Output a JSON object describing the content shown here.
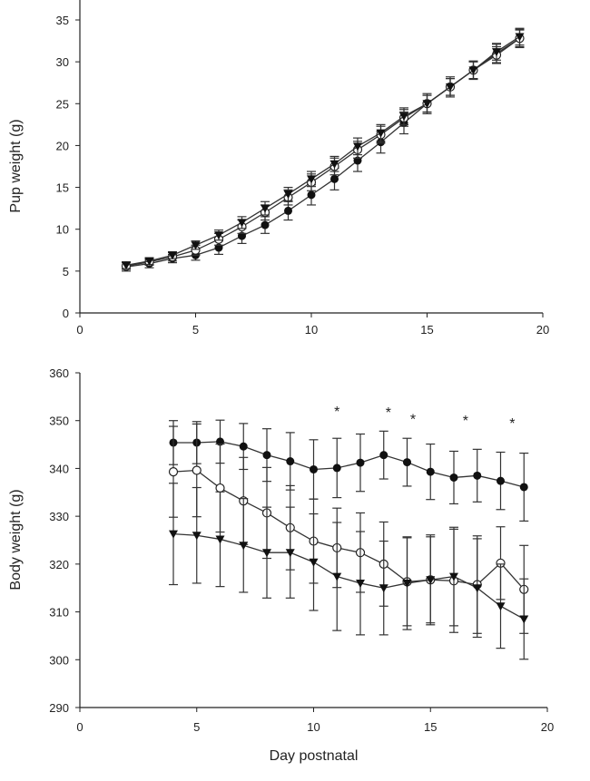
{
  "chart_data": [
    {
      "type": "line",
      "ylabel": "Pup weight (g)",
      "xlabel": "",
      "xlim": [
        0,
        20
      ],
      "ylim": [
        0,
        35
      ],
      "xticks": [
        0,
        5,
        10,
        15,
        20
      ],
      "yticks": [
        0,
        5,
        10,
        15,
        20,
        25,
        30,
        35
      ],
      "grid": false,
      "x": [
        2,
        3,
        4,
        5,
        6,
        7,
        8,
        9,
        10,
        11,
        12,
        13,
        14,
        15,
        16,
        17,
        18,
        19
      ],
      "series": [
        {
          "marker": "filled-circle",
          "values": [
            5.5,
            5.9,
            6.5,
            6.9,
            7.8,
            9.2,
            10.5,
            12.2,
            14.1,
            16,
            18.2,
            20.4,
            22.7,
            25,
            27,
            29,
            31,
            32.8
          ],
          "error": [
            0.5,
            0.5,
            0.5,
            0.6,
            0.8,
            0.9,
            1,
            1.1,
            1.2,
            1.3,
            1.3,
            1.3,
            1.3,
            1.2,
            1.2,
            1.1,
            1.1,
            1.1
          ]
        },
        {
          "marker": "open-circle",
          "values": [
            5.6,
            6.1,
            6.7,
            7.5,
            8.8,
            10.3,
            12,
            13.8,
            15.6,
            17.5,
            19.5,
            21.3,
            23.3,
            25,
            27,
            29,
            30.8,
            32.8
          ],
          "error": [
            0.4,
            0.4,
            0.5,
            0.6,
            0.7,
            0.8,
            0.9,
            0.9,
            1,
            1,
            1,
            1,
            1,
            1,
            1,
            1,
            1,
            1
          ]
        },
        {
          "marker": "filled-triangle-down",
          "values": [
            5.7,
            6.2,
            6.9,
            8.1,
            9.3,
            10.8,
            12.5,
            14.2,
            16,
            17.8,
            19.9,
            21.5,
            23.5,
            25,
            27,
            29,
            31.2,
            33
          ],
          "error": [
            0.4,
            0.4,
            0.4,
            0.5,
            0.6,
            0.7,
            0.8,
            0.8,
            0.9,
            0.9,
            1,
            1,
            1,
            1,
            1,
            1,
            1,
            1
          ]
        }
      ]
    },
    {
      "type": "line",
      "ylabel": "Body weight (g)",
      "xlabel": "Day postnatal",
      "xlim": [
        0,
        20
      ],
      "ylim": [
        290,
        360
      ],
      "xticks": [
        0,
        5,
        10,
        15,
        20
      ],
      "yticks": [
        290,
        300,
        310,
        320,
        330,
        340,
        350,
        360
      ],
      "grid": false,
      "x": [
        4,
        5,
        6,
        7,
        8,
        9,
        10,
        11,
        12,
        13,
        14,
        15,
        16,
        17,
        18,
        19
      ],
      "series": [
        {
          "marker": "filled-circle",
          "values": [
            345.4,
            345.4,
            345.6,
            344.6,
            342.8,
            341.5,
            339.8,
            340.1,
            341.2,
            342.8,
            341.3,
            339.3,
            338.1,
            338.5,
            337.4,
            336.1
          ],
          "error": [
            4.6,
            4.4,
            4.5,
            4.8,
            5.5,
            6,
            6.2,
            6.2,
            6,
            5,
            5,
            5.8,
            5.5,
            5.5,
            6,
            7.1
          ]
        },
        {
          "marker": "open-circle",
          "values": [
            339.3,
            339.6,
            335.9,
            333.2,
            330.7,
            327.6,
            324.8,
            323.4,
            322.4,
            320,
            316.3,
            316.7,
            316.5,
            315.7,
            320.2,
            314.7
          ],
          "error": [
            9.5,
            9.7,
            9.2,
            9.1,
            9.5,
            8.8,
            8.8,
            8.3,
            8.3,
            8.8,
            9.2,
            9,
            10.8,
            10.2,
            7.6,
            9.2
          ]
        },
        {
          "marker": "filled-triangle-down",
          "values": [
            326.3,
            326,
            325.2,
            323.9,
            322.4,
            322.4,
            320.4,
            317.4,
            316,
            315,
            316,
            316.7,
            317.4,
            315,
            311.2,
            308.5
          ],
          "error": [
            10.6,
            10,
            9.9,
            9.8,
            9.5,
            9.5,
            10.1,
            11.3,
            10.8,
            9.8,
            9.7,
            9.4,
            10.3,
            10.3,
            8.8,
            8.4
          ]
        }
      ],
      "annotations": [
        {
          "text": "*",
          "x": 11,
          "y": 352.4
        },
        {
          "text": "*",
          "x": 13.2,
          "y": 352.2
        },
        {
          "text": "*",
          "x": 14.25,
          "y": 350.8
        },
        {
          "text": "*",
          "x": 16.5,
          "y": 350.5
        },
        {
          "text": "*",
          "x": 18.5,
          "y": 349.9
        }
      ]
    }
  ]
}
